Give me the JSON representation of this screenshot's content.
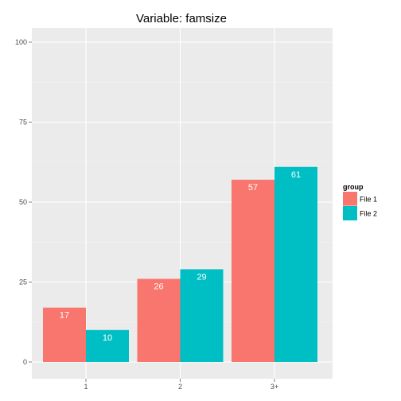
{
  "chart_data": {
    "type": "bar",
    "title": "Variable:  famsize",
    "xlabel": "",
    "ylabel": "",
    "categories": [
      "1",
      "2",
      "3+"
    ],
    "ylim": [
      0,
      105
    ],
    "yticks": [
      0,
      25,
      50,
      75,
      100
    ],
    "series": [
      {
        "name": "File 1",
        "values": [
          17,
          26,
          57
        ],
        "color": "#F8766D"
      },
      {
        "name": "File 2",
        "values": [
          10,
          29,
          61
        ],
        "color": "#00BFC4"
      }
    ],
    "legend": {
      "title": "group",
      "position": "right"
    },
    "grid": true,
    "panel_background": "#EBEBEB",
    "grid_color": "#FFFFFF"
  }
}
